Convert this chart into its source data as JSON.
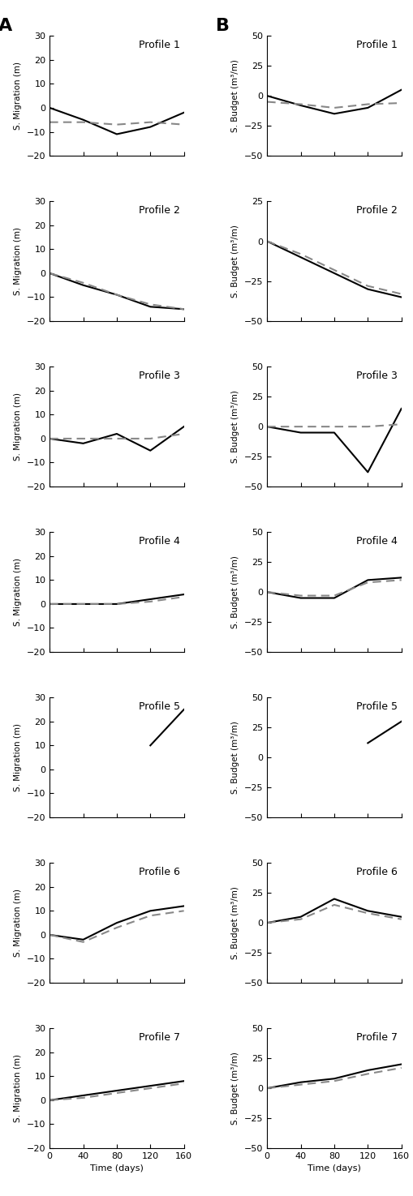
{
  "x": [
    0,
    40,
    80,
    120,
    160
  ],
  "col_A": {
    "ylabel": "S. Migration (m)",
    "profiles": [
      {
        "name": "Profile 1",
        "ylim": [
          -20,
          30
        ],
        "yticks": [
          -20,
          -10,
          0,
          10,
          20,
          30
        ],
        "solid": [
          0,
          -5,
          -11,
          -8,
          -2
        ],
        "dashed": [
          -6,
          -6,
          -7,
          -6,
          -7
        ]
      },
      {
        "name": "Profile 2",
        "ylim": [
          -20,
          30
        ],
        "yticks": [
          -20,
          -10,
          0,
          10,
          20,
          30
        ],
        "solid": [
          0,
          -5,
          -9,
          -14,
          -15
        ],
        "dashed": [
          0,
          -4,
          -9,
          -13,
          -15
        ]
      },
      {
        "name": "Profile 3",
        "ylim": [
          -20,
          30
        ],
        "yticks": [
          -20,
          -10,
          0,
          10,
          20,
          30
        ],
        "solid": [
          0,
          -2,
          2,
          -5,
          5
        ],
        "dashed": [
          0,
          0,
          0,
          0,
          2
        ]
      },
      {
        "name": "Profile 4",
        "ylim": [
          -20,
          30
        ],
        "yticks": [
          -20,
          -10,
          0,
          10,
          20,
          30
        ],
        "solid": [
          0,
          0,
          0,
          2,
          4
        ],
        "dashed": [
          0,
          0,
          0,
          1,
          3
        ]
      },
      {
        "name": "Profile 5",
        "ylim": [
          -20,
          30
        ],
        "yticks": [
          -20,
          -10,
          0,
          10,
          20,
          30
        ],
        "solid": [
          null,
          null,
          null,
          10,
          25
        ],
        "dashed": []
      },
      {
        "name": "Profile 6",
        "ylim": [
          -20,
          30
        ],
        "yticks": [
          -20,
          -10,
          0,
          10,
          20,
          30
        ],
        "solid": [
          0,
          -2,
          5,
          10,
          12
        ],
        "dashed": [
          0,
          -3,
          3,
          8,
          10
        ]
      },
      {
        "name": "Profile 7",
        "ylim": [
          -20,
          30
        ],
        "yticks": [
          -20,
          -10,
          0,
          10,
          20,
          30
        ],
        "solid": [
          0,
          2,
          4,
          6,
          8
        ],
        "dashed": [
          0,
          1,
          3,
          5,
          7
        ]
      }
    ]
  },
  "col_B": {
    "ylabel": "S. Budget (m³/m)",
    "profiles": [
      {
        "name": "Profile 1",
        "ylim": [
          -50,
          50
        ],
        "yticks": [
          -50,
          -25,
          0,
          25,
          50
        ],
        "solid": [
          0,
          -8,
          -15,
          -10,
          5
        ],
        "dashed": [
          -5,
          -7,
          -10,
          -7,
          -6
        ]
      },
      {
        "name": "Profile 2",
        "ylim": [
          -50,
          25
        ],
        "yticks": [
          -50,
          -25,
          0,
          25
        ],
        "solid": [
          0,
          -10,
          -20,
          -30,
          -35
        ],
        "dashed": [
          0,
          -8,
          -18,
          -28,
          -33
        ]
      },
      {
        "name": "Profile 3",
        "ylim": [
          -50,
          50
        ],
        "yticks": [
          -50,
          -25,
          0,
          25,
          50
        ],
        "solid": [
          0,
          -5,
          -5,
          -38,
          15
        ],
        "dashed": [
          0,
          0,
          0,
          0,
          2
        ]
      },
      {
        "name": "Profile 4",
        "ylim": [
          -50,
          50
        ],
        "yticks": [
          -50,
          -25,
          0,
          25,
          50
        ],
        "solid": [
          0,
          -5,
          -5,
          10,
          12
        ],
        "dashed": [
          0,
          -3,
          -3,
          8,
          10
        ]
      },
      {
        "name": "Profile 5",
        "ylim": [
          -50,
          50
        ],
        "yticks": [
          -50,
          -25,
          0,
          25,
          50
        ],
        "solid": [
          null,
          null,
          null,
          12,
          30
        ],
        "dashed": []
      },
      {
        "name": "Profile 6",
        "ylim": [
          -50,
          50
        ],
        "yticks": [
          -50,
          -25,
          0,
          25,
          50
        ],
        "solid": [
          0,
          5,
          20,
          10,
          5
        ],
        "dashed": [
          0,
          3,
          15,
          8,
          3
        ]
      },
      {
        "name": "Profile 7",
        "ylim": [
          -50,
          50
        ],
        "yticks": [
          -50,
          -25,
          0,
          25,
          50
        ],
        "solid": [
          0,
          5,
          8,
          15,
          20
        ],
        "dashed": [
          0,
          3,
          6,
          12,
          17
        ]
      }
    ]
  },
  "xlabel": "Time (days)",
  "xticks": [
    0,
    40,
    80,
    120,
    160
  ],
  "xticklabels": [
    "0",
    "40",
    "80",
    "120",
    "160"
  ],
  "solid_color": "#000000",
  "dashed_color": "#888888",
  "linewidth": 1.5,
  "label_A": "A",
  "label_B": "B"
}
